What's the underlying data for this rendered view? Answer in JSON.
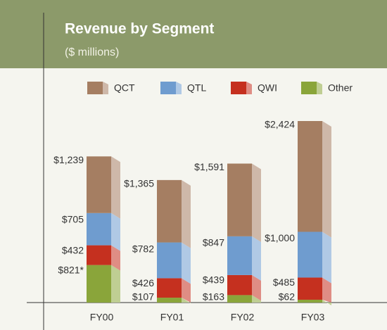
{
  "chart_data": {
    "type": "stacked-bar3d",
    "title": "Revenue by Segment",
    "subtitle": "($ millions)",
    "categories": [
      "FY00",
      "FY01",
      "FY02",
      "FY03"
    ],
    "series": [
      {
        "name": "Other",
        "color": "#8aa53a",
        "values": [
          821,
          107,
          163,
          62
        ],
        "value_labels": [
          "$821*",
          "$107",
          "$163",
          "$62"
        ]
      },
      {
        "name": "QWI",
        "color": "#c5301f",
        "values": [
          432,
          426,
          439,
          485
        ],
        "value_labels": [
          "$432",
          "$426",
          "$439",
          "$485"
        ]
      },
      {
        "name": "QTL",
        "color": "#6f9ccf",
        "values": [
          705,
          782,
          847,
          1000
        ],
        "value_labels": [
          "$705",
          "$782",
          "$847",
          "$1,000"
        ]
      },
      {
        "name": "QCT",
        "color": "#a57e62",
        "values": [
          1239,
          1365,
          1591,
          2424
        ],
        "value_labels": [
          "$1,239",
          "$1,365",
          "$1,591",
          "$2,424"
        ]
      }
    ],
    "legend_order": [
      "QCT",
      "QTL",
      "QWI",
      "Other"
    ]
  }
}
